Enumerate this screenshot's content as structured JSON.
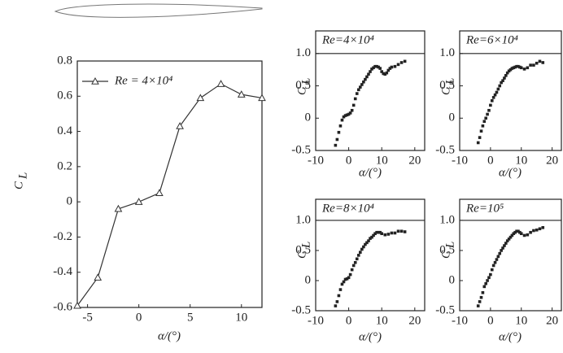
{
  "chart_data": [
    {
      "type": "line",
      "x_label": "α/(°)",
      "y_label": "C",
      "y_label_subscript": "L",
      "x": [
        -6,
        -4,
        -2,
        0,
        2,
        4,
        6,
        8,
        10,
        12
      ],
      "series": [
        {
          "name": "Re = 4×10⁴",
          "color": "#333333",
          "marker": "triangle",
          "values": [
            -0.59,
            -0.43,
            -0.04,
            0.0,
            0.05,
            0.43,
            0.59,
            0.67,
            0.61,
            0.59
          ]
        }
      ],
      "xlim": [
        -6,
        12
      ],
      "xticks": [
        -5,
        0,
        5,
        10
      ],
      "ylim": [
        -0.6,
        0.8
      ],
      "yticks": [
        -0.6,
        -0.4,
        -0.2,
        0,
        0.2,
        0.4,
        0.6,
        0.8
      ],
      "legend": "upper left"
    },
    {
      "type": "scatter",
      "title": "Re=4×10⁴",
      "x_label": "α/(°)",
      "y_label": "C",
      "y_label_subscript": "L",
      "color": "#222222",
      "x": [
        -4,
        -3.5,
        -3,
        -2.5,
        -2,
        -1.5,
        -1,
        -0.5,
        0,
        0.5,
        1,
        1.5,
        2,
        2.5,
        3,
        3.5,
        4,
        4.5,
        5,
        5.5,
        6,
        6.5,
        7,
        7.5,
        8,
        8.5,
        9,
        9.5,
        10,
        10.5,
        11,
        11.5,
        12,
        12.5,
        13,
        14,
        15,
        16,
        17
      ],
      "values": [
        -0.42,
        -0.33,
        -0.22,
        -0.12,
        -0.03,
        0.02,
        0.04,
        0.05,
        0.06,
        0.08,
        0.12,
        0.2,
        0.3,
        0.38,
        0.44,
        0.48,
        0.52,
        0.56,
        0.6,
        0.64,
        0.68,
        0.72,
        0.76,
        0.78,
        0.8,
        0.8,
        0.79,
        0.77,
        0.72,
        0.69,
        0.68,
        0.7,
        0.74,
        0.77,
        0.79,
        0.8,
        0.83,
        0.86,
        0.88
      ],
      "xlim": [
        -10,
        23
      ],
      "xticks": [
        -10,
        0,
        10,
        20
      ],
      "ylim": [
        -0.5,
        1.35
      ],
      "yticks": [
        -0.5,
        0,
        0.5,
        {
          "value": 1,
          "label": "1.0"
        }
      ]
    },
    {
      "type": "scatter",
      "title": "Re=6×10⁴",
      "x_label": "α/(°)",
      "y_label": "C",
      "y_label_subscript": "L",
      "color": "#222222",
      "x": [
        -4,
        -3.5,
        -3,
        -2.5,
        -2,
        -1.5,
        -1,
        -0.5,
        0,
        0.5,
        1,
        1.5,
        2,
        2.5,
        3,
        3.5,
        4,
        4.5,
        5,
        5.5,
        6,
        6.5,
        7,
        7.5,
        8,
        8.5,
        9,
        9.5,
        10,
        11,
        12,
        13,
        14,
        15,
        16,
        17
      ],
      "values": [
        -0.38,
        -0.3,
        -0.2,
        -0.12,
        -0.05,
        0.0,
        0.06,
        0.12,
        0.2,
        0.27,
        0.32,
        0.36,
        0.4,
        0.45,
        0.5,
        0.55,
        0.58,
        0.62,
        0.66,
        0.7,
        0.73,
        0.75,
        0.77,
        0.78,
        0.79,
        0.8,
        0.8,
        0.79,
        0.78,
        0.76,
        0.78,
        0.82,
        0.82,
        0.85,
        0.88,
        0.86
      ],
      "xlim": [
        -10,
        23
      ],
      "xticks": [
        -10,
        0,
        10,
        20
      ],
      "ylim": [
        -0.5,
        1.35
      ],
      "yticks": [
        -0.5,
        0,
        0.5,
        {
          "value": 1,
          "label": "1.0"
        }
      ]
    },
    {
      "type": "scatter",
      "title": "Re=8×10⁴",
      "x_label": "α/(°)",
      "y_label": "C",
      "y_label_subscript": "L",
      "color": "#222222",
      "x": [
        -4,
        -3.5,
        -3,
        -2.5,
        -2,
        -1.5,
        -1,
        -0.5,
        0,
        0.5,
        1,
        1.5,
        2,
        2.5,
        3,
        3.5,
        4,
        4.5,
        5,
        5.5,
        6,
        6.5,
        7,
        7.5,
        8,
        8.5,
        9,
        9.5,
        10,
        11,
        12,
        13,
        14,
        15,
        16,
        17
      ],
      "values": [
        -0.42,
        -0.35,
        -0.25,
        -0.15,
        -0.06,
        -0.02,
        0.02,
        0.03,
        0.05,
        0.1,
        0.18,
        0.25,
        0.3,
        0.36,
        0.42,
        0.47,
        0.52,
        0.56,
        0.6,
        0.63,
        0.66,
        0.7,
        0.72,
        0.75,
        0.78,
        0.8,
        0.8,
        0.8,
        0.78,
        0.76,
        0.77,
        0.79,
        0.79,
        0.82,
        0.82,
        0.81
      ],
      "xlim": [
        -10,
        23
      ],
      "xticks": [
        -10,
        0,
        10,
        20
      ],
      "ylim": [
        -0.5,
        1.35
      ],
      "yticks": [
        -0.5,
        0,
        0.5,
        {
          "value": 1,
          "label": "1.0"
        }
      ]
    },
    {
      "type": "scatter",
      "title": "Re=10⁵",
      "x_label": "α/(°)",
      "y_label": "C",
      "y_label_subscript": "L",
      "color": "#222222",
      "x": [
        -4,
        -3.5,
        -3,
        -2.5,
        -2,
        -1.5,
        -1,
        -0.5,
        0,
        0.5,
        1,
        1.5,
        2,
        2.5,
        3,
        3.5,
        4,
        4.5,
        5,
        5.5,
        6,
        6.5,
        7,
        7.5,
        8,
        8.5,
        9,
        9.5,
        10,
        11,
        12,
        13,
        14,
        15,
        16,
        17
      ],
      "values": [
        -0.42,
        -0.35,
        -0.28,
        -0.2,
        -0.1,
        -0.05,
        0.0,
        0.05,
        0.1,
        0.18,
        0.25,
        0.3,
        0.35,
        0.4,
        0.45,
        0.5,
        0.54,
        0.58,
        0.62,
        0.66,
        0.69,
        0.72,
        0.75,
        0.78,
        0.8,
        0.82,
        0.82,
        0.8,
        0.78,
        0.75,
        0.76,
        0.8,
        0.83,
        0.84,
        0.86,
        0.88
      ],
      "xlim": [
        -10,
        23
      ],
      "xticks": [
        -10,
        0,
        10,
        20
      ],
      "ylim": [
        -0.5,
        1.35
      ],
      "yticks": [
        -0.5,
        0,
        0.5,
        {
          "value": 1,
          "label": "1.0"
        }
      ]
    }
  ]
}
